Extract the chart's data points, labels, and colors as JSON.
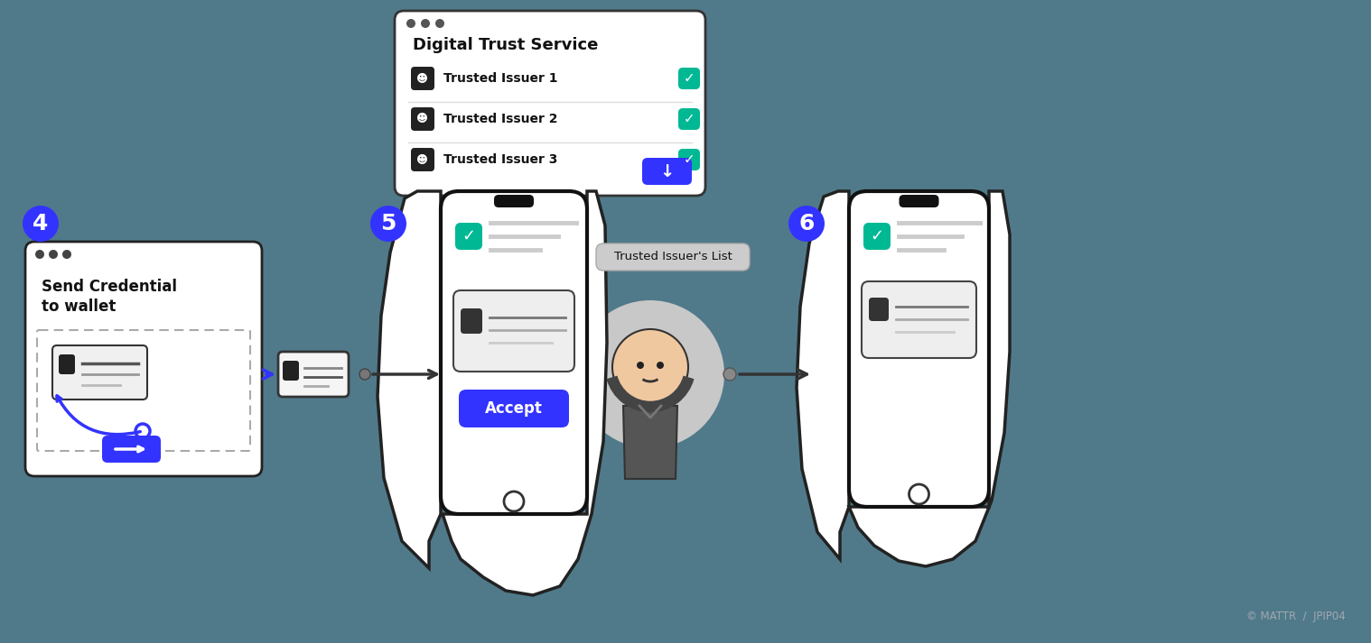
{
  "bg_color": "#507a8a",
  "copyright": "© MATTR  /  JPIP04",
  "blue_color": "#3333ff",
  "green_color": "#00b894",
  "dark_color": "#111111",
  "white_color": "#ffffff",
  "dts_title": "Digital Trust Service",
  "dts_issuers": [
    "Trusted Issuer 1",
    "Trusted Issuer 2",
    "Trusted Issuer 3"
  ],
  "trusted_list_label": "Trusted Issuer's List",
  "send_cred_line1": "Send Credential",
  "send_cred_line2": "to wallet",
  "accept_label": "Accept",
  "step4": "4",
  "step5": "5",
  "step6": "6"
}
